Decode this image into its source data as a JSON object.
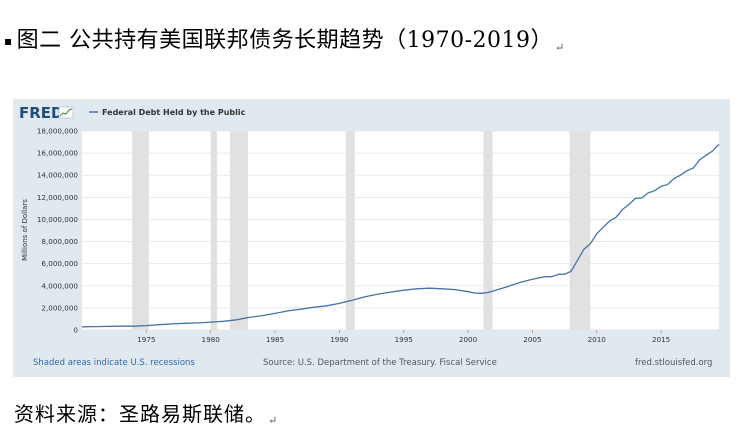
{
  "document": {
    "caption_bullet": "▪",
    "caption": "图二 公共持有美国联邦债务长期趋势（1970-2019）",
    "source_note": "资料来源：圣路易斯联储。",
    "paragraph_mark": "↵"
  },
  "fred_header": {
    "logo_text": "FRED",
    "logo_icon": "fred-mini-chart-icon",
    "legend_swatch_color": "#4572a7"
  },
  "footer": {
    "recessions_note": "Shaded areas indicate U.S. recessions",
    "source": "Source: U.S. Department of the Treasury. Fiscal Service",
    "site": "fred.stlouisfed.org"
  },
  "colors": {
    "line": "#4572a7",
    "frame_bg": "#e1e9f0",
    "plot_bg": "#ffffff",
    "recession": "#e1e1e1",
    "logo": "#1f4e79",
    "footer_blue": "#2d6ab0",
    "footer_gray": "#555555"
  },
  "chart_data": {
    "type": "line",
    "title": "",
    "xlabel": "",
    "ylabel": "Millions of Dollars",
    "xlim": [
      1970,
      2019.5
    ],
    "ylim": [
      0,
      18000000
    ],
    "grid": true,
    "legend_position": "top-left",
    "x_ticks": [
      "1975",
      "1980",
      "1985",
      "1990",
      "1995",
      "2000",
      "2005",
      "2010",
      "2015"
    ],
    "y_ticks": [
      "0",
      "2,000,000",
      "4,000,000",
      "6,000,000",
      "8,000,000",
      "10,000,000",
      "12,000,000",
      "14,000,000",
      "16,000,000",
      "18,000,000"
    ],
    "recessions": [
      [
        1973.9,
        1975.2
      ],
      [
        1980.0,
        1980.5
      ],
      [
        1981.5,
        1982.9
      ],
      [
        1990.5,
        1991.2
      ],
      [
        2001.2,
        2001.9
      ],
      [
        2007.9,
        2009.5
      ]
    ],
    "series": [
      {
        "name": "Federal Debt Held by the Public",
        "x": [
          1970,
          1971,
          1972,
          1973,
          1974,
          1975,
          1976,
          1977,
          1978,
          1979,
          1980,
          1981,
          1982,
          1983,
          1984,
          1985,
          1986,
          1987,
          1988,
          1989,
          1990,
          1991,
          1992,
          1993,
          1994,
          1995,
          1996,
          1997,
          1998,
          1999,
          2000,
          2000.5,
          2001,
          2001.5,
          2002,
          2003,
          2004,
          2005,
          2006,
          2006.5,
          2007,
          2007.5,
          2008,
          2008.5,
          2009,
          2009.5,
          2010,
          2010.5,
          2011,
          2011.5,
          2012,
          2012.5,
          2013,
          2013.5,
          2014,
          2014.5,
          2015,
          2015.5,
          2016,
          2016.5,
          2017,
          2017.5,
          2018,
          2018.5,
          2019,
          2019.5
        ],
        "y": [
          290000,
          305000,
          323000,
          340000,
          346000,
          395000,
          477000,
          550000,
          607000,
          640000,
          712000,
          790000,
          920000,
          1140000,
          1300000,
          1500000,
          1730000,
          1880000,
          2050000,
          2190000,
          2410000,
          2690000,
          3000000,
          3250000,
          3430000,
          3600000,
          3730000,
          3780000,
          3730000,
          3650000,
          3460000,
          3350000,
          3320000,
          3380000,
          3540000,
          3900000,
          4290000,
          4590000,
          4830000,
          4820000,
          5030000,
          5050000,
          5300000,
          6300000,
          7300000,
          7800000,
          8700000,
          9300000,
          9850000,
          10200000,
          10900000,
          11350000,
          11900000,
          11950000,
          12400000,
          12600000,
          13000000,
          13150000,
          13700000,
          14000000,
          14400000,
          14650000,
          15400000,
          15800000,
          16200000,
          16800000
        ]
      }
    ]
  }
}
